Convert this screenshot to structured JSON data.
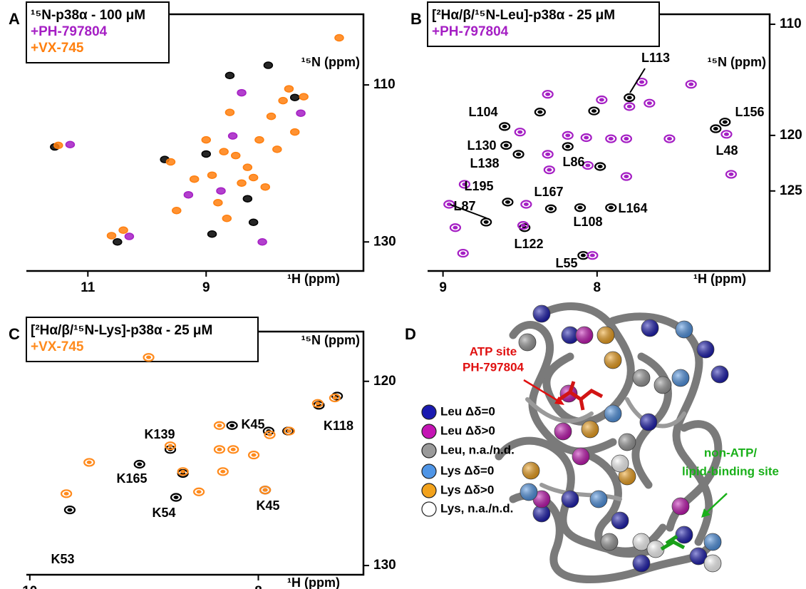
{
  "chart_data": [
    {
      "type": "scatter",
      "panel": "A",
      "x_label": "¹H (ppm)",
      "y_label": "¹⁵N (ppm)",
      "xlim": [
        12.04,
        6.34
      ],
      "ylim": [
        101,
        133.7
      ],
      "xticks": [
        11,
        9
      ],
      "yticks": [
        110,
        130
      ],
      "series": [
        {
          "name": "¹⁵N-p38α - 100 μM",
          "color": "#000000",
          "x": [
            11.56,
            10.5,
            9.0,
            8.6,
            7.95,
            8.2,
            7.5,
            9.7,
            8.9,
            8.3
          ],
          "values": [
            117.9,
            130.0,
            118.8,
            108.8,
            107.5,
            127.5,
            111.6,
            119.5,
            129.0,
            124.5
          ]
        },
        {
          "name": "+PH-797804",
          "color": "#a51fc4",
          "x": [
            11.3,
            10.3,
            8.4,
            8.75,
            7.4,
            9.3,
            8.05,
            8.55
          ],
          "values": [
            117.6,
            129.3,
            111.0,
            123.5,
            113.6,
            124.0,
            130.0,
            116.5
          ]
        },
        {
          "name": "+VX-745",
          "color": "#ff7f0e",
          "x": [
            11.5,
            10.6,
            10.4,
            9.6,
            9.2,
            8.9,
            8.7,
            8.5,
            8.3,
            8.1,
            7.9,
            7.7,
            7.6,
            7.5,
            8.8,
            8.4,
            8.2,
            8.0,
            7.8,
            9.0,
            8.6,
            7.35,
            6.75,
            9.5,
            8.65
          ],
          "values": [
            117.7,
            129.2,
            128.5,
            119.8,
            122.0,
            121.5,
            118.5,
            119.0,
            120.5,
            117.0,
            114.0,
            112.0,
            110.5,
            116.0,
            125.0,
            122.5,
            121.8,
            123.0,
            118.2,
            117.0,
            113.5,
            111.5,
            104.0,
            126.0,
            127.0
          ]
        }
      ]
    },
    {
      "type": "scatter",
      "panel": "B",
      "x_label": "¹H (ppm)",
      "y_label": "¹⁵N (ppm)",
      "xlim": [
        9.1,
        6.88
      ],
      "ylim": [
        109.1,
        132.2
      ],
      "xticks": [
        9,
        8
      ],
      "yticks": [
        110,
        120,
        125
      ],
      "series": [
        {
          "name": "[²Hα/β/¹⁵N-Leu]-p38α - 25 μM",
          "color": "#000000",
          "x": [
            7.79,
            8.6,
            8.59,
            8.51,
            8.19,
            8.58,
            8.72,
            8.3,
            8.11,
            7.91,
            8.47,
            8.09,
            7.17,
            7.23,
            8.02,
            7.98,
            8.37
          ],
          "values": [
            116.6,
            119.2,
            120.9,
            121.7,
            121.0,
            126.0,
            127.8,
            126.6,
            126.5,
            126.5,
            128.3,
            130.8,
            118.8,
            119.4,
            117.8,
            122.8,
            117.9
          ]
        },
        {
          "name": "+PH-797804",
          "color": "#a51fc4",
          "x": [
            8.96,
            8.92,
            8.87,
            8.5,
            8.32,
            8.19,
            8.07,
            7.91,
            7.81,
            7.71,
            7.66,
            7.39,
            7.53,
            7.16,
            7.13,
            7.79,
            7.97,
            8.32,
            8.31,
            8.06,
            7.81,
            8.48,
            8.03,
            8.46,
            8.86
          ],
          "values": [
            126.2,
            128.3,
            130.6,
            119.7,
            121.7,
            120.0,
            120.2,
            120.3,
            120.3,
            115.2,
            117.1,
            115.4,
            120.3,
            119.9,
            123.5,
            117.4,
            116.8,
            116.3,
            123.1,
            122.7,
            123.7,
            128.1,
            130.8,
            126.2,
            124.4
          ]
        }
      ],
      "annotations": [
        "L113",
        "L104",
        "L156",
        "L130",
        "L48",
        "L138",
        "L86",
        "L195",
        "L87",
        "L167",
        "L164",
        "L108",
        "L122",
        "L55"
      ]
    },
    {
      "type": "scatter",
      "panel": "C",
      "x_label": "¹H (ppm)",
      "y_label": "¹⁵N (ppm)",
      "xlim": [
        10.03,
        7.08
      ],
      "ylim": [
        117.3,
        130.5
      ],
      "xticks": [
        10,
        8
      ],
      "yticks": [
        120,
        130
      ],
      "series": [
        {
          "name": "[²Hα/β/¹⁵N-Lys]-p38α - 25 μM",
          "color": "#000000",
          "x": [
            9.65,
            8.72,
            9.04,
            8.77,
            7.91,
            7.94,
            7.47,
            7.31,
            7.74,
            8.23,
            8.66
          ],
          "values": [
            126.98,
            126.3,
            124.5,
            123.7,
            122.7,
            125.9,
            121.3,
            120.8,
            122.7,
            122.4,
            125.0
          ]
        },
        {
          "name": "+VX-745",
          "color": "#ff8a1c",
          "x": [
            8.96,
            8.77,
            8.66,
            8.34,
            8.34,
            8.31,
            8.22,
            7.9,
            7.73,
            7.48,
            7.33,
            7.94,
            9.48,
            9.68,
            8.52,
            8.04
          ],
          "values": [
            118.7,
            123.5,
            124.9,
            122.4,
            123.7,
            124.9,
            123.7,
            122.9,
            122.7,
            121.2,
            120.9,
            125.9,
            124.4,
            126.1,
            126.0,
            124.0
          ]
        }
      ],
      "annotations": [
        "K139",
        "K45",
        "K118",
        "K165",
        "K45",
        "K54",
        "K53"
      ]
    }
  ],
  "panel_d": {
    "panel": "D",
    "atp_site": [
      "ATP site",
      "PH-797804"
    ],
    "lipid_site": [
      "non-ATP/",
      "lipid-binding site"
    ],
    "legend": [
      {
        "label": "Leu Δδ=0",
        "color": "#1a1ab0"
      },
      {
        "label": "Leu Δδ>0",
        "color": "#c414b4"
      },
      {
        "label": "Leu, n.a./n.d.",
        "color": "#9a9a9a"
      },
      {
        "label": "Lys Δδ=0",
        "color": "#4f95e6"
      },
      {
        "label": "Lys Δδ>0",
        "color": "#f2a21c"
      },
      {
        "label": "Lys, n.a./n.d.",
        "color": "#ffffff"
      }
    ]
  }
}
